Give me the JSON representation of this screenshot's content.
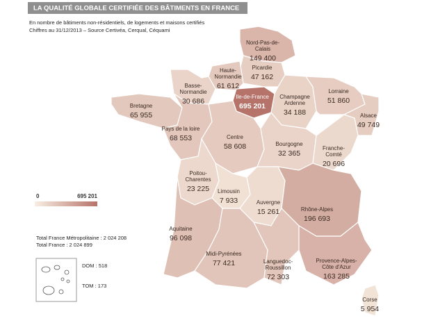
{
  "header": {
    "title": "LA QUALITÉ GLOBALE CERTIFIÉE DES BÂTIMENTS EN FRANCE",
    "subtitle": "En nombre de bâtiments non-résidentiels, de logements et maisons certifiés",
    "source": "Chiffres au 31/12/2013 – Source Certivéa, Cerqual, Céquami"
  },
  "legend": {
    "min": 0,
    "min_label": "0",
    "max": 695201,
    "max_label": "695 201",
    "colors": [
      "#f8eee2",
      "#b5736a"
    ]
  },
  "regions": [
    {
      "name": [
        "Nord-Pas-de-",
        "Calais"
      ],
      "value": 149400,
      "value_label": "149 400"
    },
    {
      "name": [
        "Picardie"
      ],
      "value": 47162,
      "value_label": "47 162"
    },
    {
      "name": [
        "Haute-",
        "Normandie"
      ],
      "value": 61612,
      "value_label": "61 612"
    },
    {
      "name": [
        "Basse-",
        "Normandie"
      ],
      "value": 30686,
      "value_label": "30 686"
    },
    {
      "name": [
        "Ile-de-France"
      ],
      "value": 695201,
      "value_label": "695 201"
    },
    {
      "name": [
        "Champagne",
        "Ardenne"
      ],
      "value": 34188,
      "value_label": "34 188"
    },
    {
      "name": [
        "Lorraine"
      ],
      "value": 51860,
      "value_label": "51 860"
    },
    {
      "name": [
        "Alsace"
      ],
      "value": 49749,
      "value_label": "49 749"
    },
    {
      "name": [
        "Bretagne"
      ],
      "value": 65955,
      "value_label": "65 955"
    },
    {
      "name": [
        "Pays de la loire"
      ],
      "value": 68553,
      "value_label": "68 553"
    },
    {
      "name": [
        "Centre"
      ],
      "value": 58608,
      "value_label": "58 608"
    },
    {
      "name": [
        "Bourgogne"
      ],
      "value": 32365,
      "value_label": "32 365"
    },
    {
      "name": [
        "Franche-",
        "Comté"
      ],
      "value": 20696,
      "value_label": "20 696"
    },
    {
      "name": [
        "Poitou-",
        "Charentes"
      ],
      "value": 23225,
      "value_label": "23 225"
    },
    {
      "name": [
        "Limousin"
      ],
      "value": 7933,
      "value_label": "7 933"
    },
    {
      "name": [
        "Auvergne"
      ],
      "value": 15261,
      "value_label": "15 261"
    },
    {
      "name": [
        "Rhône-Alpes"
      ],
      "value": 196693,
      "value_label": "196 693"
    },
    {
      "name": [
        "Aquitaine"
      ],
      "value": 96098,
      "value_label": "96 098"
    },
    {
      "name": [
        "Midi-Pyrénées"
      ],
      "value": 77421,
      "value_label": "77 421"
    },
    {
      "name": [
        "Languedoc-",
        "Roussillon"
      ],
      "value": 72303,
      "value_label": "72 303"
    },
    {
      "name": [
        "Provence-Alpes-",
        "Côte d'Azur"
      ],
      "value": 163285,
      "value_label": "163 285"
    },
    {
      "name": [
        "Corse"
      ],
      "value": 5954,
      "value_label": "5 954"
    }
  ],
  "totals": [
    "Total France Métropolitaine : 2 024 208",
    "Total France  : 2 024 899"
  ],
  "overseas": [
    "DOM : 518",
    "TOM : 173"
  ]
}
